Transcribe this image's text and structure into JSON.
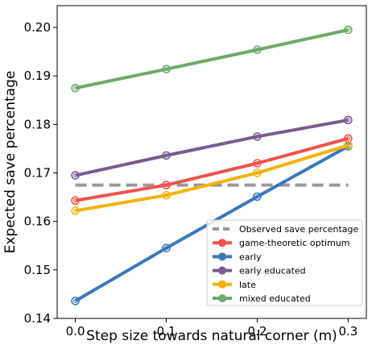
{
  "chart_data": {
    "type": "line",
    "xlabel": "Step size towards natural corner (m)",
    "ylabel": "Expected save percentage",
    "x": [
      0.0,
      0.1,
      0.2,
      0.3
    ],
    "xticks": [
      "0.0",
      "0.1",
      "0.2",
      "0.3"
    ],
    "yticks": [
      "0.14",
      "0.15",
      "0.16",
      "0.17",
      "0.18",
      "0.19",
      "0.20"
    ],
    "xlim": [
      -0.02,
      0.32
    ],
    "ylim": [
      0.14,
      0.2045
    ],
    "grid": false,
    "legend_position": "lower-right",
    "reference_line": {
      "name": "Observed save percentage",
      "value": 0.1675,
      "color": "#999999",
      "style": "dashed"
    },
    "series": [
      {
        "name": "game-theoretic optimum",
        "color": "#f0524a",
        "values": [
          0.1643,
          0.1675,
          0.172,
          0.1771
        ]
      },
      {
        "name": "early",
        "color": "#3a78bb",
        "values": [
          0.1436,
          0.1545,
          0.1651,
          0.1755
        ]
      },
      {
        "name": "early educated",
        "color": "#7b5a90",
        "values": [
          0.1695,
          0.1736,
          0.1775,
          0.1809
        ]
      },
      {
        "name": "late",
        "color": "#f6b10e",
        "values": [
          0.1622,
          0.1654,
          0.17,
          0.1757
        ]
      },
      {
        "name": "mixed educated",
        "color": "#6daa6a",
        "values": [
          0.1875,
          0.1914,
          0.1954,
          0.1995
        ]
      }
    ]
  }
}
